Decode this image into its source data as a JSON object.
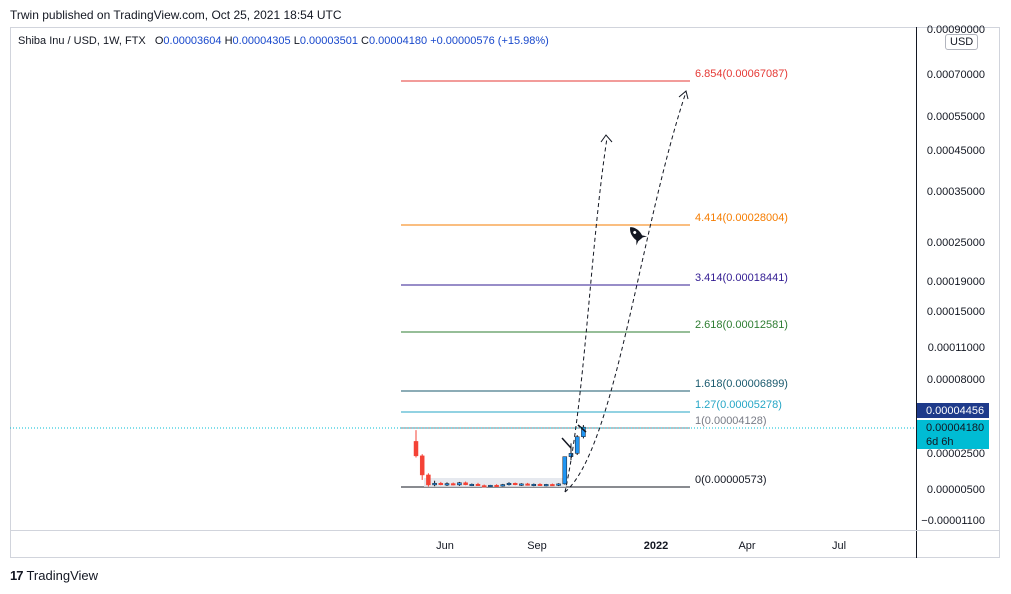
{
  "header": {
    "published": "Trwin published on TradingView.com, Oct 25, 2021 18:54 UTC"
  },
  "legend": {
    "symbol": "Shiba Inu / USD, 1W, FTX",
    "o_label": "O",
    "o": "0.00003604",
    "h_label": "H",
    "h": "0.00004305",
    "l_label": "L",
    "l": "0.00003501",
    "c_label": "C",
    "c": "0.00004180",
    "change": "+0.00000576 (+15.98%)"
  },
  "currency": "USD",
  "brand": {
    "logo_text": "17",
    "name": "TradingView"
  },
  "colors": {
    "up": "#2196f3",
    "down": "#f44336",
    "price_line": "#00bcd4",
    "axis_tag_dark": "#1e3a8a",
    "axis_tag_cyan": "#00bcd4"
  },
  "chart_data": {
    "type": "candlestick",
    "title": "Shiba Inu / USD, 1W, FTX",
    "y_axis_ticks": [
      "0.00090000",
      "0.00070000",
      "0.00055000",
      "0.00045000",
      "0.00035000",
      "0.00025000",
      "0.00019000",
      "0.00015000",
      "0.00011000",
      "0.00008000",
      "0.00002500",
      "0.00000500",
      "−0.00001100"
    ],
    "x_axis_ticks": [
      "Jun",
      "Sep",
      "2022",
      "Apr",
      "Jul"
    ],
    "price_tags": [
      {
        "value": "0.00004456",
        "style": "dark"
      },
      {
        "value": "0.00004180",
        "style": "cyan"
      },
      {
        "value": "6d 6h",
        "style": "cyan"
      }
    ],
    "fib_levels": [
      {
        "label": "6.854(0.00067087)",
        "ratio": 6.854,
        "value": 0.00067087,
        "color": "#e53935"
      },
      {
        "label": "4.414(0.00028004)",
        "ratio": 4.414,
        "value": 0.00028004,
        "color": "#f57c00"
      },
      {
        "label": "3.414(0.00018441)",
        "ratio": 3.414,
        "value": 0.00018441,
        "color": "#311b92"
      },
      {
        "label": "2.618(0.00012581)",
        "ratio": 2.618,
        "value": 0.00012581,
        "color": "#2e7d32"
      },
      {
        "label": "1.618(0.00006899)",
        "ratio": 1.618,
        "value": 6.899e-05,
        "color": "#1a5a6e"
      },
      {
        "label": "1.27(0.00005278)",
        "ratio": 1.27,
        "value": 5.278e-05,
        "color": "#26a6c6"
      },
      {
        "label": "1(0.00004128)",
        "ratio": 1,
        "value": 4.128e-05,
        "color": "#787b86"
      },
      {
        "label": "0(0.00000573)",
        "ratio": 0,
        "value": 5.73e-06,
        "color": "#131722"
      }
    ],
    "candles": [
      {
        "o": 3.32e-05,
        "h": 4e-05,
        "l": 2.35e-05,
        "c": 2.45e-05
      },
      {
        "o": 2.45e-05,
        "h": 2.55e-05,
        "l": 1e-05,
        "c": 1.3e-05
      },
      {
        "o": 1.3e-05,
        "h": 1.4e-05,
        "l": 6e-06,
        "c": 7e-06
      },
      {
        "o": 7e-06,
        "h": 9.5e-06,
        "l": 6.2e-06,
        "c": 8e-06
      },
      {
        "o": 8e-06,
        "h": 8.8e-06,
        "l": 6.8e-06,
        "c": 7.2e-06
      },
      {
        "o": 7.2e-06,
        "h": 8.5e-06,
        "l": 6.3e-06,
        "c": 7.8e-06
      },
      {
        "o": 7.8e-06,
        "h": 8.4e-06,
        "l": 6.7e-06,
        "c": 7e-06
      },
      {
        "o": 7e-06,
        "h": 8.8e-06,
        "l": 6.4e-06,
        "c": 8.3e-06
      },
      {
        "o": 8.3e-06,
        "h": 9e-06,
        "l": 6.8e-06,
        "c": 7.1e-06
      },
      {
        "o": 7.1e-06,
        "h": 7.8e-06,
        "l": 6.3e-06,
        "c": 7.4e-06
      },
      {
        "o": 7.4e-06,
        "h": 8.2e-06,
        "l": 6.4e-06,
        "c": 6.6e-06
      },
      {
        "o": 6.6e-06,
        "h": 7.2e-06,
        "l": 5.8e-06,
        "c": 6.2e-06
      },
      {
        "o": 6.2e-06,
        "h": 7e-06,
        "l": 5.7e-06,
        "c": 6.8e-06
      },
      {
        "o": 6.8e-06,
        "h": 7.4e-06,
        "l": 6e-06,
        "c": 6.4e-06
      },
      {
        "o": 6.4e-06,
        "h": 7.6e-06,
        "l": 6e-06,
        "c": 7.2e-06
      },
      {
        "o": 7.2e-06,
        "h": 8.6e-06,
        "l": 6.6e-06,
        "c": 8e-06
      },
      {
        "o": 8e-06,
        "h": 8.4e-06,
        "l": 6.8e-06,
        "c": 7.1e-06
      },
      {
        "o": 7.1e-06,
        "h": 8e-06,
        "l": 6.4e-06,
        "c": 7.6e-06
      },
      {
        "o": 7.6e-06,
        "h": 8.2e-06,
        "l": 6.6e-06,
        "c": 6.9e-06
      },
      {
        "o": 6.9e-06,
        "h": 7.8e-06,
        "l": 6.2e-06,
        "c": 7.4e-06
      },
      {
        "o": 7.4e-06,
        "h": 8e-06,
        "l": 6.4e-06,
        "c": 6.6e-06
      },
      {
        "o": 6.6e-06,
        "h": 7.6e-06,
        "l": 6.2e-06,
        "c": 7.3e-06
      },
      {
        "o": 7.3e-06,
        "h": 7.8e-06,
        "l": 6.4e-06,
        "c": 6.8e-06
      },
      {
        "o": 6.8e-06,
        "h": 8e-06,
        "l": 6.3e-06,
        "c": 7.6e-06
      },
      {
        "o": 7.6e-06,
        "h": 2.4e-05,
        "l": 7.2e-06,
        "c": 2.4e-05
      },
      {
        "o": 2.4e-05,
        "h": 3.2e-05,
        "l": 2.2e-05,
        "c": 2.6e-05
      },
      {
        "o": 2.6e-05,
        "h": 3.7e-05,
        "l": 2.5e-05,
        "c": 3.6e-05
      },
      {
        "o": 3.604e-05,
        "h": 4.305e-05,
        "l": 3.501e-05,
        "c": 4.18e-05
      }
    ]
  }
}
